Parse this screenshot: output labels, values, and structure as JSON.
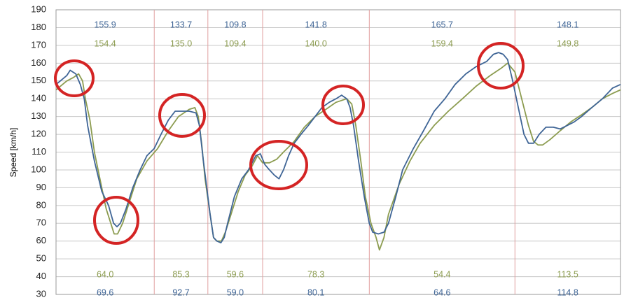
{
  "chart_data": {
    "type": "line",
    "y_label": "Speed [km/h]",
    "xlim": [
      0,
      100
    ],
    "ylim": [
      30,
      190
    ],
    "yticks": [
      30,
      40,
      50,
      60,
      70,
      80,
      90,
      100,
      110,
      120,
      130,
      140,
      150,
      160,
      170,
      180,
      190
    ],
    "grid": true,
    "section_bounds": [
      17.4,
      26.9,
      36.6,
      55.5,
      81.3
    ],
    "series": [
      {
        "color": "#3f6596",
        "x": [
          0,
          1.9,
          2.5,
          3.5,
          4.3,
          5.0,
          5.6,
          6.8,
          8.1,
          9.3,
          10.2,
          10.8,
          11.4,
          12.4,
          13.6,
          14.9,
          16.1,
          17.4,
          18.6,
          19.9,
          21.1,
          22.3,
          23.6,
          24.8,
          25.4,
          26.1,
          26.7,
          27.3,
          27.9,
          28.5,
          29.2,
          29.8,
          30.4,
          31.6,
          32.9,
          34.1,
          35.4,
          36.2,
          37.0,
          37.8,
          38.7,
          39.5,
          40.3,
          41.2,
          42.2,
          43.4,
          44.7,
          45.9,
          47.1,
          48.4,
          49.6,
          50.6,
          51.5,
          52.1,
          52.7,
          53.6,
          54.6,
          55.5,
          56.1,
          57.1,
          58.1,
          58.9,
          60.2,
          61.4,
          63.3,
          65.1,
          67.0,
          68.9,
          70.7,
          72.6,
          74.4,
          76.3,
          77.5,
          78.4,
          79.2,
          80.0,
          80.9,
          81.9,
          82.9,
          83.7,
          84.6,
          85.6,
          86.8,
          88.1,
          89.3,
          90.6,
          91.8,
          93.1,
          94.9,
          96.8,
          98.6,
          100
        ],
        "values": [
          148,
          153,
          156,
          154,
          148,
          140,
          125,
          105,
          88,
          80,
          70,
          68,
          70,
          78,
          90,
          100,
          108,
          112,
          120,
          128,
          133,
          133,
          133,
          132,
          125,
          105,
          90,
          75,
          62,
          60,
          59,
          62,
          70,
          85,
          95,
          100,
          108,
          109,
          103,
          100,
          97,
          95,
          100,
          108,
          115,
          120,
          125,
          130,
          135,
          138,
          140,
          142,
          140,
          135,
          125,
          105,
          85,
          70,
          65,
          64,
          65,
          70,
          85,
          100,
          112,
          122,
          133,
          140,
          148,
          154,
          158,
          161,
          165,
          166,
          165,
          162,
          150,
          135,
          120,
          115,
          115,
          120,
          124,
          124,
          123,
          125,
          127,
          130,
          135,
          140,
          146,
          148
        ],
        "section_max": [
          155.9,
          133.7,
          109.8,
          141.8,
          165.7,
          148.1
        ],
        "section_max_labels": [
          "155.9",
          "133.7",
          "109.8",
          "141.8",
          "165.7",
          "148.1"
        ],
        "section_min": [
          69.6,
          92.7,
          59.0,
          80.1,
          64.6,
          114.8
        ],
        "section_min_labels": [
          "69.6",
          "92.7",
          "59.0",
          "80.1",
          "64.6",
          "114.8"
        ]
      },
      {
        "color": "#8c9c50",
        "x": [
          0,
          1.9,
          3.1,
          4.0,
          4.7,
          5.2,
          6.0,
          6.8,
          8.1,
          8.9,
          9.7,
          10.3,
          10.9,
          11.8,
          13.0,
          14.3,
          16.1,
          18.0,
          19.9,
          21.7,
          23.6,
          24.6,
          25.2,
          25.8,
          26.4,
          27.3,
          27.9,
          28.5,
          29.3,
          30.0,
          31.0,
          32.3,
          33.5,
          34.7,
          35.7,
          36.6,
          37.8,
          39.1,
          40.3,
          42.2,
          44.0,
          45.9,
          47.8,
          49.6,
          51.5,
          52.4,
          53.1,
          54.0,
          54.8,
          55.8,
          56.7,
          57.3,
          58.1,
          58.9,
          60.8,
          62.7,
          64.5,
          67.0,
          69.5,
          72.0,
          74.4,
          76.9,
          78.8,
          80.0,
          81.3,
          82.5,
          83.7,
          84.6,
          85.4,
          86.2,
          87.5,
          89.3,
          91.2,
          93.1,
          94.9,
          96.8,
          98.6,
          100
        ],
        "values": [
          145,
          150,
          152,
          154,
          150,
          140,
          128,
          110,
          90,
          78,
          70,
          64,
          64,
          70,
          82,
          95,
          105,
          112,
          122,
          130,
          134,
          135,
          130,
          115,
          95,
          75,
          62,
          60,
          60,
          65,
          75,
          88,
          97,
          102,
          108,
          104,
          104,
          106,
          110,
          116,
          124,
          130,
          134,
          138,
          140,
          137,
          125,
          105,
          85,
          70,
          62,
          55,
          62,
          75,
          92,
          105,
          115,
          125,
          133,
          140,
          147,
          153,
          157,
          160,
          155,
          140,
          125,
          116,
          114,
          114,
          117,
          122,
          127,
          131,
          135,
          140,
          143,
          145
        ],
        "section_max": [
          154.4,
          135.0,
          109.4,
          140.0,
          159.4,
          149.8
        ],
        "section_max_labels": [
          "154.4",
          "135.0",
          "109.4",
          "140.0",
          "159.4",
          "149.8"
        ],
        "section_min": [
          64.0,
          85.3,
          59.6,
          78.3,
          54.4,
          113.5
        ],
        "section_min_labels": [
          "64.0",
          "85.3",
          "59.6",
          "78.3",
          "54.4",
          "113.5"
        ]
      }
    ]
  }
}
